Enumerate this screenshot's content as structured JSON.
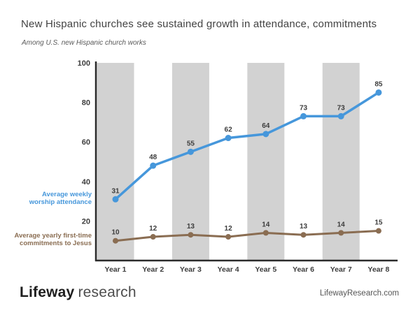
{
  "title": "New Hispanic churches see sustained growth in attendance, commitments",
  "subtitle": "Among U.S. new Hispanic church works",
  "footer": {
    "brand_bold": "Lifeway",
    "brand_light": "research",
    "website": "LifewayResearch.com"
  },
  "colors": {
    "attendance": "#4697db",
    "commitments": "#8a6d52",
    "band": "#d2d2d2",
    "axis": "#2b2b2b",
    "tick_label": "#3d3d3d",
    "value_label": "#3d3d3d",
    "background": "#ffffff"
  },
  "chart_data": {
    "type": "line",
    "categories": [
      "Year 1",
      "Year 2",
      "Year 3",
      "Year 4",
      "Year 5",
      "Year 6",
      "Year 7",
      "Year 8"
    ],
    "series": [
      {
        "name": "Average weekly worship attendance",
        "legend_lines": [
          "Average weekly",
          "worship attendance"
        ],
        "color": "#4697db",
        "values": [
          31,
          48,
          55,
          62,
          64,
          73,
          73,
          85
        ]
      },
      {
        "name": "Average yearly first-time commitments to Jesus",
        "legend_lines": [
          "Average yearly first-time",
          "commitments to Jesus"
        ],
        "color": "#8a6d52",
        "values": [
          10,
          12,
          13,
          12,
          14,
          13,
          14,
          15
        ]
      }
    ],
    "ylim": [
      0,
      100
    ],
    "yticks": [
      20,
      40,
      60,
      80,
      100
    ],
    "grid": false,
    "band_columns": [
      0,
      2,
      4,
      6
    ],
    "legend_position": "left-of-axis",
    "data_labels": true
  }
}
